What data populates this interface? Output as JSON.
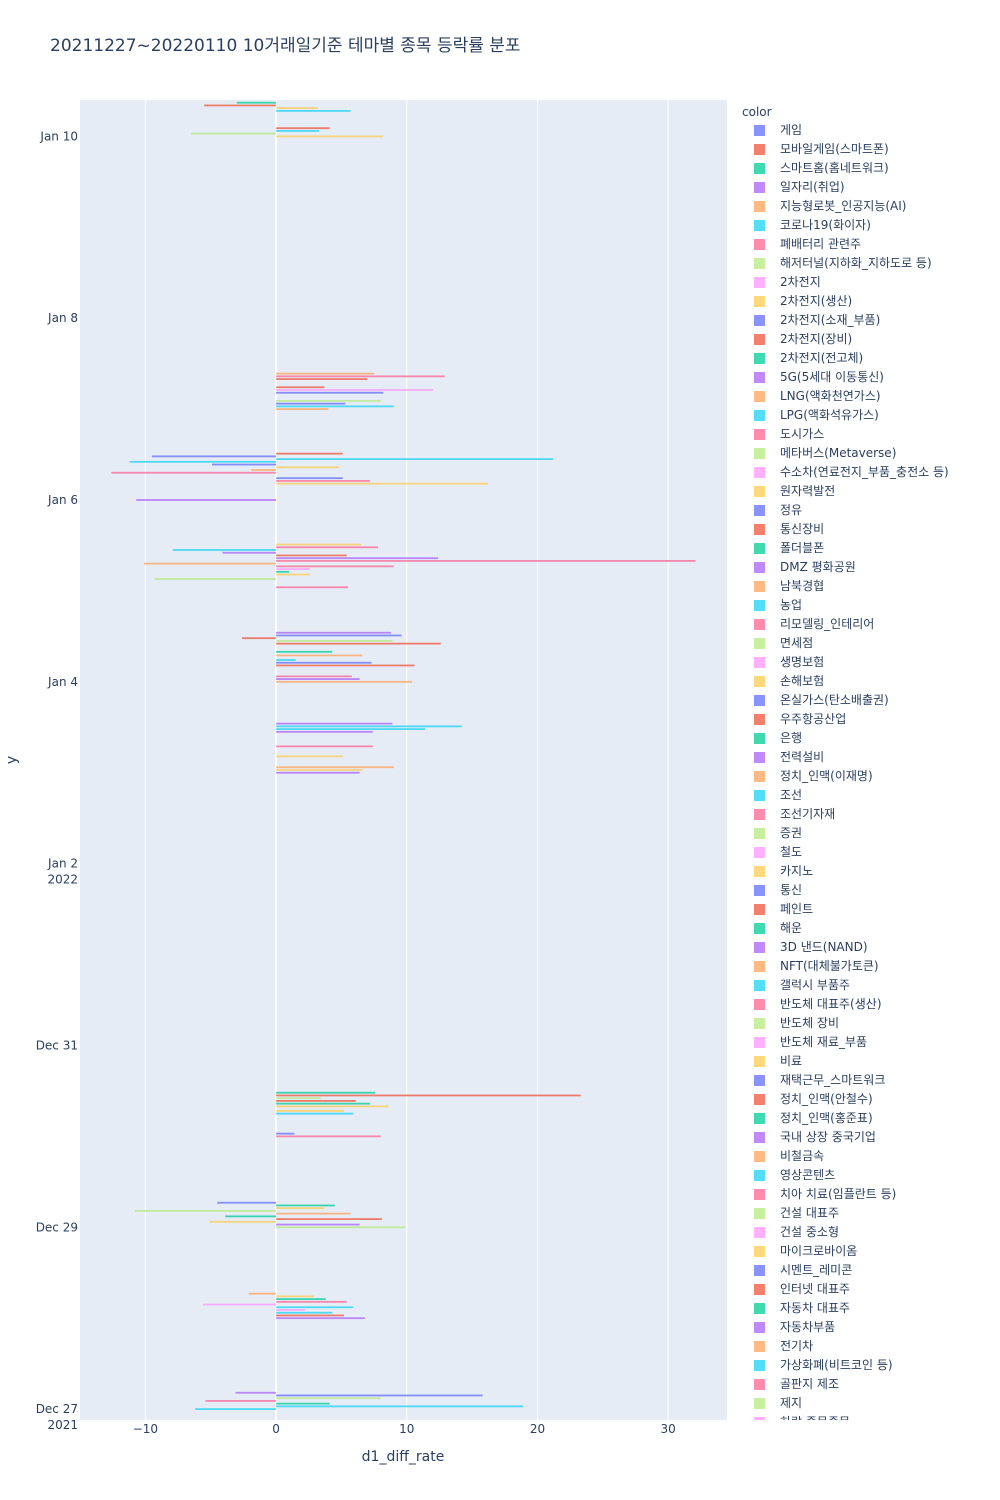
{
  "chart_data": {
    "type": "bar",
    "orientation": "horizontal",
    "title": "20211227~20220110 10거래일기준 테마별 종목 등락률 분포",
    "xlabel": "d1_diff_rate",
    "ylabel": "y",
    "xlim": [
      -15,
      34.5
    ],
    "x_ticks": [
      -10,
      0,
      10,
      20,
      30
    ],
    "x_tick_labels": [
      "−10",
      "0",
      "10",
      "20",
      "30"
    ],
    "y_ticks": [
      {
        "day": 0,
        "line1": "Dec 27",
        "line2": "2021"
      },
      {
        "day": 2,
        "line1": "Dec 29",
        "line2": ""
      },
      {
        "day": 4,
        "line1": "Dec 31",
        "line2": ""
      },
      {
        "day": 6,
        "line1": "Jan 2",
        "line2": "2022"
      },
      {
        "day": 8,
        "line1": "Jan 4",
        "line2": ""
      },
      {
        "day": 10,
        "line1": "Jan 6",
        "line2": ""
      },
      {
        "day": 12,
        "line1": "Jan 8",
        "line2": ""
      },
      {
        "day": 14,
        "line1": "Jan 10",
        "line2": ""
      }
    ],
    "ylim_days": [
      -0.12,
      14.4
    ],
    "trading_days": [
      0,
      1,
      2,
      3,
      7,
      8,
      9,
      10,
      11,
      14
    ],
    "legend_title": "color",
    "palette": [
      "#636efa",
      "#EF553B",
      "#00cc96",
      "#ab63fa",
      "#FFA15A",
      "#19d3f3",
      "#FF6692",
      "#B6E880",
      "#FF97FF",
      "#FECB52"
    ],
    "legend": [
      "게임",
      "모바일게임(스마트폰)",
      "스마트홈(홈네트워크)",
      "일자리(취업)",
      "지능형로봇_인공지능(AI)",
      "코로나19(화이자)",
      "폐배터리 관련주",
      "해저터널(지하화_지하도로 등)",
      "2차전지",
      "2차전지(생산)",
      "2차전지(소재_부품)",
      "2차전지(장비)",
      "2차전지(전고체)",
      "5G(5세대 이동통신)",
      "LNG(액화천연가스)",
      "LPG(액화석유가스)",
      "도시가스",
      "메타버스(Metaverse)",
      "수소차(연료전지_부품_충전소 등)",
      "원자력발전",
      "정유",
      "통신장비",
      "폴더블폰",
      "DMZ 평화공원",
      "남북경협",
      "농업",
      "리모델링_인테리어",
      "면세점",
      "생명보험",
      "손해보험",
      "온실가스(탄소배출권)",
      "우주항공산업",
      "은행",
      "전력설비",
      "정치_인맥(이재명)",
      "조선",
      "조선기자재",
      "증권",
      "철도",
      "카지노",
      "통신",
      "페인트",
      "해운",
      "3D 낸드(NAND)",
      "NFT(대체불가토큰)",
      "갤럭시 부품주",
      "반도체 대표주(생산)",
      "반도체 장비",
      "반도체 재료_부품",
      "비료",
      "재택근무_스마트워크",
      "정치_인맥(안철수)",
      "정치_인맥(홍준표)",
      "국내 상장 중국기업",
      "비철금속",
      "영상콘텐츠",
      "치아 치료(임플란트 등)",
      "건설 대표주",
      "건설 중소형",
      "마이크로바이옴",
      "시멘트_레미콘",
      "인터넷 대표주",
      "자동차 대표주",
      "자동차부품",
      "전기차",
      "가상화폐(비트코인 등)",
      "골판지 제조",
      "제지",
      "하락 종목종목"
    ],
    "bars": [
      {
        "day": 0,
        "offset": 0.0,
        "value": -6.2,
        "color_index": 5
      },
      {
        "day": 0,
        "offset": 0.03,
        "value": 18.9,
        "color_index": 5
      },
      {
        "day": 0,
        "offset": 0.06,
        "value": 4.1,
        "color_index": 2
      },
      {
        "day": 0,
        "offset": 0.09,
        "value": -5.4,
        "color_index": 6
      },
      {
        "day": 0,
        "offset": 0.12,
        "value": 8.0,
        "color_index": 7
      },
      {
        "day": 0,
        "offset": 0.15,
        "value": 15.8,
        "color_index": 0
      },
      {
        "day": 0,
        "offset": 0.18,
        "value": -3.1,
        "color_index": 3
      },
      {
        "day": 1,
        "offset": 0.0,
        "value": 6.8,
        "color_index": 3
      },
      {
        "day": 1,
        "offset": 0.03,
        "value": 5.2,
        "color_index": 1
      },
      {
        "day": 1,
        "offset": 0.06,
        "value": 4.3,
        "color_index": 5
      },
      {
        "day": 1,
        "offset": 0.09,
        "value": 2.2,
        "color_index": 8
      },
      {
        "day": 1,
        "offset": 0.12,
        "value": 5.9,
        "color_index": 5
      },
      {
        "day": 1,
        "offset": 0.15,
        "value": -5.6,
        "color_index": 8
      },
      {
        "day": 1,
        "offset": 0.18,
        "value": 5.4,
        "color_index": 6
      },
      {
        "day": 1,
        "offset": 0.21,
        "value": 3.8,
        "color_index": 2
      },
      {
        "day": 1,
        "offset": 0.24,
        "value": 2.9,
        "color_index": 9
      },
      {
        "day": 1,
        "offset": 0.27,
        "value": -2.1,
        "color_index": 4
      },
      {
        "day": 2,
        "offset": 0.0,
        "value": 9.9,
        "color_index": 7
      },
      {
        "day": 2,
        "offset": 0.03,
        "value": 6.4,
        "color_index": 3
      },
      {
        "day": 2,
        "offset": 0.06,
        "value": -5.1,
        "color_index": 9
      },
      {
        "day": 2,
        "offset": 0.09,
        "value": 8.1,
        "color_index": 1
      },
      {
        "day": 2,
        "offset": 0.12,
        "value": -3.9,
        "color_index": 2
      },
      {
        "day": 2,
        "offset": 0.15,
        "value": 5.7,
        "color_index": 4
      },
      {
        "day": 2,
        "offset": 0.18,
        "value": -10.8,
        "color_index": 7
      },
      {
        "day": 2,
        "offset": 0.21,
        "value": 3.7,
        "color_index": 9
      },
      {
        "day": 2,
        "offset": 0.24,
        "value": 4.5,
        "color_index": 2
      },
      {
        "day": 2,
        "offset": 0.27,
        "value": -4.5,
        "color_index": 0
      },
      {
        "day": 3,
        "offset": 0.0,
        "value": 8.0,
        "color_index": 6
      },
      {
        "day": 3,
        "offset": 0.03,
        "value": 1.4,
        "color_index": 0
      },
      {
        "day": 3,
        "offset": 0.25,
        "value": 5.9,
        "color_index": 5
      },
      {
        "day": 3,
        "offset": 0.28,
        "value": 5.2,
        "color_index": 9
      },
      {
        "day": 3,
        "offset": 0.33,
        "value": 8.6,
        "color_index": 9
      },
      {
        "day": 3,
        "offset": 0.36,
        "value": 7.2,
        "color_index": 2
      },
      {
        "day": 3,
        "offset": 0.39,
        "value": 6.1,
        "color_index": 1
      },
      {
        "day": 3,
        "offset": 0.42,
        "value": 3.4,
        "color_index": 7
      },
      {
        "day": 3,
        "offset": 0.45,
        "value": 23.3,
        "color_index": 1
      },
      {
        "day": 3,
        "offset": 0.48,
        "value": 7.6,
        "color_index": 2
      },
      {
        "day": 7,
        "offset": 0.0,
        "value": 6.4,
        "color_index": 3
      },
      {
        "day": 7,
        "offset": 0.03,
        "value": 6.6,
        "color_index": 9
      },
      {
        "day": 7,
        "offset": 0.06,
        "value": 9.0,
        "color_index": 4
      },
      {
        "day": 7,
        "offset": 0.18,
        "value": 5.1,
        "color_index": 9
      },
      {
        "day": 7,
        "offset": 0.29,
        "value": 7.4,
        "color_index": 6
      },
      {
        "day": 7,
        "offset": 0.45,
        "value": 7.4,
        "color_index": 3
      },
      {
        "day": 7,
        "offset": 0.48,
        "value": 11.4,
        "color_index": 5
      },
      {
        "day": 7,
        "offset": 0.51,
        "value": 14.2,
        "color_index": 5
      },
      {
        "day": 7,
        "offset": 0.54,
        "value": 8.9,
        "color_index": 3
      },
      {
        "day": 8,
        "offset": 0.0,
        "value": 10.4,
        "color_index": 4
      },
      {
        "day": 8,
        "offset": 0.03,
        "value": 6.4,
        "color_index": 3
      },
      {
        "day": 8,
        "offset": 0.06,
        "value": 5.8,
        "color_index": 6
      },
      {
        "day": 8,
        "offset": 0.18,
        "value": 10.6,
        "color_index": 1
      },
      {
        "day": 8,
        "offset": 0.21,
        "value": 7.3,
        "color_index": 0
      },
      {
        "day": 8,
        "offset": 0.24,
        "value": 1.5,
        "color_index": 5
      },
      {
        "day": 8,
        "offset": 0.29,
        "value": 6.6,
        "color_index": 4
      },
      {
        "day": 8,
        "offset": 0.33,
        "value": 4.3,
        "color_index": 2
      },
      {
        "day": 8,
        "offset": 0.42,
        "value": 12.6,
        "color_index": 1
      },
      {
        "day": 8,
        "offset": 0.45,
        "value": 8.9,
        "color_index": 7
      },
      {
        "day": 8,
        "offset": 0.48,
        "value": -2.6,
        "color_index": 1
      },
      {
        "day": 8,
        "offset": 0.51,
        "value": 9.6,
        "color_index": 0
      },
      {
        "day": 8,
        "offset": 0.54,
        "value": 8.8,
        "color_index": 3
      },
      {
        "day": 9,
        "offset": 0.04,
        "value": 5.5,
        "color_index": 6
      },
      {
        "day": 9,
        "offset": 0.13,
        "value": -9.3,
        "color_index": 7
      },
      {
        "day": 9,
        "offset": 0.18,
        "value": 2.6,
        "color_index": 9
      },
      {
        "day": 9,
        "offset": 0.21,
        "value": 1.0,
        "color_index": 2
      },
      {
        "day": 9,
        "offset": 0.24,
        "value": 2.6,
        "color_index": 8
      },
      {
        "day": 9,
        "offset": 0.27,
        "value": 9.0,
        "color_index": 6
      },
      {
        "day": 9,
        "offset": 0.3,
        "value": -10.1,
        "color_index": 4
      },
      {
        "day": 9,
        "offset": 0.33,
        "value": 32.1,
        "color_index": 6
      },
      {
        "day": 9,
        "offset": 0.36,
        "value": 12.4,
        "color_index": 3
      },
      {
        "day": 9,
        "offset": 0.39,
        "value": 5.4,
        "color_index": 1
      },
      {
        "day": 9,
        "offset": 0.42,
        "value": -4.1,
        "color_index": 3
      },
      {
        "day": 9,
        "offset": 0.45,
        "value": -7.9,
        "color_index": 5
      },
      {
        "day": 9,
        "offset": 0.48,
        "value": 7.8,
        "color_index": 6
      },
      {
        "day": 9,
        "offset": 0.51,
        "value": 6.5,
        "color_index": 9
      },
      {
        "day": 10,
        "offset": 0.0,
        "value": -10.7,
        "color_index": 3
      },
      {
        "day": 10,
        "offset": 0.18,
        "value": 16.2,
        "color_index": 9
      },
      {
        "day": 10,
        "offset": 0.21,
        "value": 7.2,
        "color_index": 6
      },
      {
        "day": 10,
        "offset": 0.24,
        "value": 5.1,
        "color_index": 0
      },
      {
        "day": 10,
        "offset": 0.3,
        "value": -12.6,
        "color_index": 6
      },
      {
        "day": 10,
        "offset": 0.33,
        "value": -1.9,
        "color_index": 4
      },
      {
        "day": 10,
        "offset": 0.36,
        "value": 4.8,
        "color_index": 9
      },
      {
        "day": 10,
        "offset": 0.39,
        "value": -4.9,
        "color_index": 0
      },
      {
        "day": 10,
        "offset": 0.42,
        "value": -11.2,
        "color_index": 5
      },
      {
        "day": 10,
        "offset": 0.45,
        "value": 21.2,
        "color_index": 5
      },
      {
        "day": 10,
        "offset": 0.48,
        "value": -9.5,
        "color_index": 0
      },
      {
        "day": 10,
        "offset": 0.51,
        "value": 5.1,
        "color_index": 1
      },
      {
        "day": 11,
        "offset": 0.0,
        "value": 4.0,
        "color_index": 4
      },
      {
        "day": 11,
        "offset": 0.03,
        "value": 9.0,
        "color_index": 5
      },
      {
        "day": 11,
        "offset": 0.06,
        "value": 5.3,
        "color_index": 0
      },
      {
        "day": 11,
        "offset": 0.09,
        "value": 8.0,
        "color_index": 7
      },
      {
        "day": 11,
        "offset": 0.18,
        "value": 8.2,
        "color_index": 0
      },
      {
        "day": 11,
        "offset": 0.21,
        "value": 12.0,
        "color_index": 8
      },
      {
        "day": 11,
        "offset": 0.24,
        "value": 3.7,
        "color_index": 1
      },
      {
        "day": 11,
        "offset": 0.33,
        "value": 7.0,
        "color_index": 1
      },
      {
        "day": 11,
        "offset": 0.36,
        "value": 12.9,
        "color_index": 6
      },
      {
        "day": 11,
        "offset": 0.39,
        "value": 7.5,
        "color_index": 4
      },
      {
        "day": 14,
        "offset": 0.0,
        "value": 8.2,
        "color_index": 9
      },
      {
        "day": 14,
        "offset": 0.03,
        "value": -6.5,
        "color_index": 7
      },
      {
        "day": 14,
        "offset": 0.06,
        "value": 3.3,
        "color_index": 5
      },
      {
        "day": 14,
        "offset": 0.09,
        "value": 4.1,
        "color_index": 1
      },
      {
        "day": 14,
        "offset": 0.28,
        "value": 5.7,
        "color_index": 5
      },
      {
        "day": 14,
        "offset": 0.31,
        "value": 3.2,
        "color_index": 9
      },
      {
        "day": 14,
        "offset": 0.34,
        "value": -5.5,
        "color_index": 1
      },
      {
        "day": 14,
        "offset": 0.37,
        "value": -3.0,
        "color_index": 2
      }
    ]
  }
}
